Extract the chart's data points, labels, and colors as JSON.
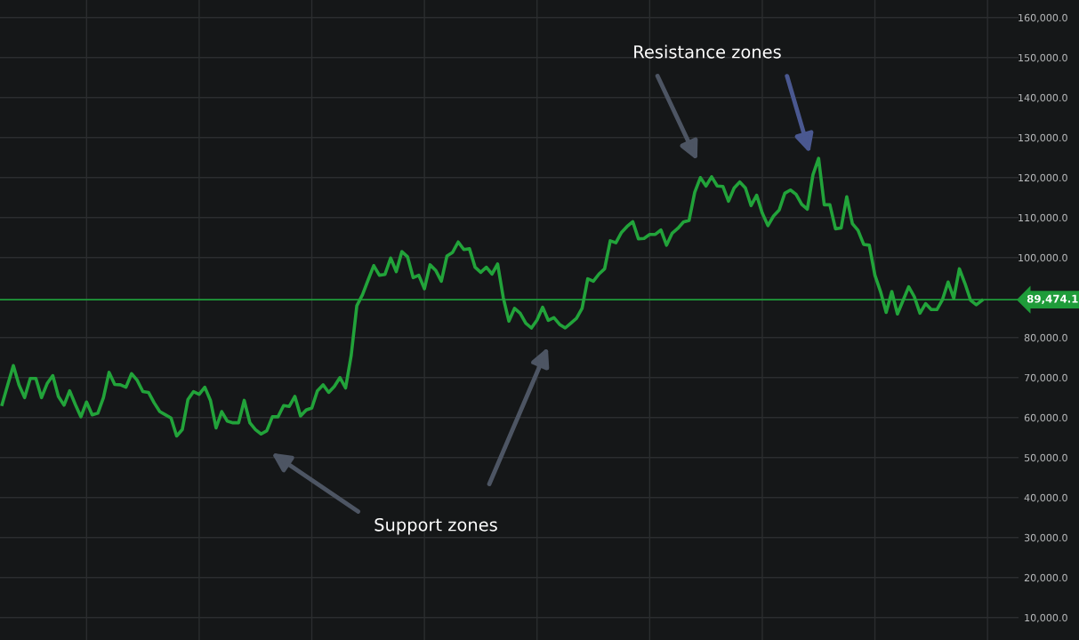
{
  "chart_data": {
    "type": "line",
    "categories": [
      null,
      null,
      null,
      null,
      null,
      null,
      null,
      null,
      null,
      null,
      null,
      null,
      null,
      null,
      null,
      null,
      null,
      null,
      null,
      null,
      null,
      null,
      null,
      null,
      null,
      null,
      null,
      null,
      null,
      null,
      null,
      null,
      null,
      null,
      null,
      null,
      null,
      null,
      null,
      null,
      null,
      null,
      null,
      null,
      null,
      null,
      null,
      null,
      null,
      null,
      null,
      null,
      null,
      null,
      null,
      null,
      null,
      null,
      null,
      null,
      null,
      null,
      null,
      null,
      null,
      null,
      null,
      null,
      null,
      null,
      null,
      null,
      null,
      null,
      null,
      null,
      null,
      null,
      null,
      null,
      null,
      null,
      null,
      null,
      null,
      null,
      null,
      null,
      null,
      null,
      null,
      null,
      null,
      null,
      null,
      null,
      null,
      null,
      null,
      null,
      null,
      null,
      null,
      null,
      null,
      null,
      null,
      null,
      null,
      null,
      null,
      null,
      null,
      null,
      null,
      null,
      null,
      null,
      null,
      null,
      null,
      null,
      null,
      null,
      null,
      null,
      null,
      null,
      null,
      null,
      null,
      null,
      null,
      null,
      null,
      null,
      null,
      null,
      null,
      null,
      null,
      null,
      null,
      null,
      null,
      null,
      null,
      null,
      null,
      null,
      null,
      null,
      null,
      null,
      null,
      null,
      null,
      null,
      null,
      null,
      null,
      null,
      null,
      null,
      null,
      null,
      null,
      null,
      null,
      null,
      null,
      null,
      null,
      null,
      null
    ],
    "series": [
      {
        "color": "#22a33a",
        "values": [
          63300,
          68200,
          73000,
          68200,
          65000,
          69800,
          69800,
          65000,
          68500,
          70500,
          65300,
          63100,
          66700,
          63300,
          60200,
          63900,
          60700,
          61100,
          65000,
          71300,
          68300,
          68200,
          67600,
          71000,
          69300,
          66500,
          66300,
          63700,
          61500,
          60700,
          59900,
          55400,
          57000,
          64500,
          66500,
          65800,
          67600,
          64300,
          57400,
          61500,
          59100,
          58700,
          58700,
          64300,
          58700,
          57000,
          55900,
          56700,
          60200,
          60200,
          63000,
          62800,
          65300,
          60400,
          61900,
          62400,
          66700,
          68200,
          66300,
          67800,
          70000,
          67400,
          75600,
          88000,
          90700,
          94400,
          98000,
          95600,
          95800,
          99900,
          96500,
          101500,
          100200,
          95000,
          95600,
          92200,
          98200,
          96800,
          94100,
          100400,
          101300,
          103900,
          102000,
          102200,
          97600,
          96300,
          97600,
          95900,
          98400,
          90000,
          84100,
          87300,
          86100,
          83600,
          82400,
          84400,
          87600,
          84300,
          85000,
          83300,
          82400,
          83600,
          84800,
          87300,
          94700,
          94100,
          95900,
          97200,
          104200,
          103700,
          106300,
          107800,
          109000,
          104700,
          104800,
          105800,
          105800,
          106900,
          103100,
          106100,
          107300,
          108900,
          109300,
          116300,
          120000,
          117900,
          120200,
          117900,
          117800,
          114100,
          117400,
          118900,
          117400,
          113000,
          115600,
          111100,
          108000,
          110400,
          111900,
          116100,
          116900,
          115800,
          113300,
          112100,
          120700,
          124800,
          113200,
          113200,
          107200,
          107400,
          115200,
          108500,
          106800,
          103300,
          103100,
          95600,
          91500,
          86300,
          91500,
          85900,
          89300,
          92700,
          90200,
          86100,
          88500,
          87000,
          87000,
          89500,
          93900,
          89800,
          97200,
          93500,
          89300,
          88200,
          89300
        ]
      }
    ],
    "ylim": [
      4400,
      164400
    ],
    "yticks": [
      {
        "value": 10000,
        "label": "10,000.0"
      },
      {
        "value": 20000,
        "label": "20,000.0"
      },
      {
        "value": 30000,
        "label": "30,000.0"
      },
      {
        "value": 40000,
        "label": "40,000.0"
      },
      {
        "value": 50000,
        "label": "50,000.0"
      },
      {
        "value": 60000,
        "label": "60,000.0"
      },
      {
        "value": 70000,
        "label": "70,000.0"
      },
      {
        "value": 80000,
        "label": "80,000.0"
      },
      {
        "value": 100000,
        "label": "100,000.0"
      },
      {
        "value": 110000,
        "label": "110,000.0"
      },
      {
        "value": 120000,
        "label": "120,000.0"
      },
      {
        "value": 130000,
        "label": "130,000.0"
      },
      {
        "value": 140000,
        "label": "140,000.0"
      },
      {
        "value": 150000,
        "label": "150,000.0"
      },
      {
        "value": 160000,
        "label": "160,000.0"
      }
    ],
    "ref_lines": [
      {
        "axis": "y",
        "value": 89474.1,
        "label": "89,474.1",
        "color": "#1f9c3a"
      }
    ],
    "annotations": [
      "Resistance zones",
      "Support zones"
    ],
    "tick_labels": "y",
    "grid": true,
    "marker": "none",
    "line_style": "solid",
    "legend": false
  }
}
